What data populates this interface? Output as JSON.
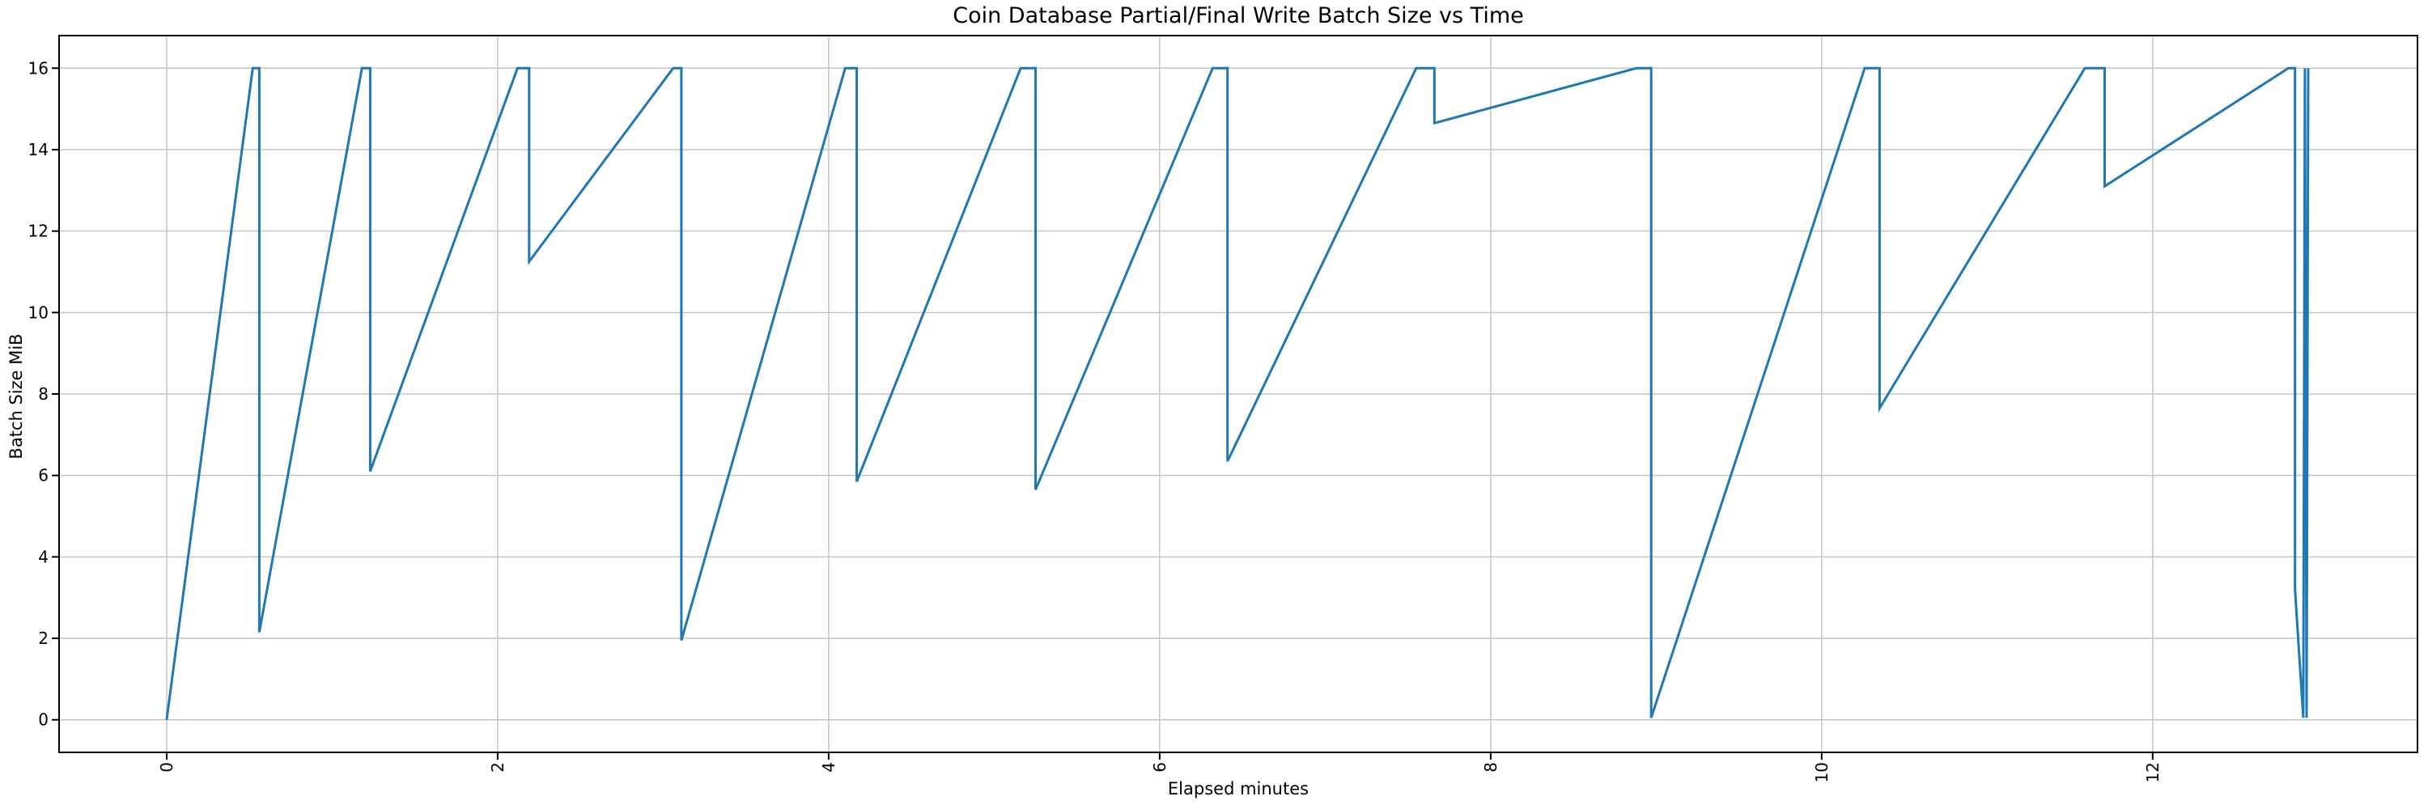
{
  "chart_data": {
    "type": "line",
    "title": "Coin Database Partial/Final Write Batch Size vs Time",
    "xlabel": "Elapsed minutes",
    "ylabel": "Batch Size MiB",
    "x_ticks": [
      0,
      2,
      4,
      6,
      8,
      10,
      12
    ],
    "y_ticks": [
      0,
      2,
      4,
      6,
      8,
      10,
      12,
      14,
      16
    ],
    "xlim": [
      -0.65,
      13.6
    ],
    "ylim": [
      -0.8,
      16.8
    ],
    "grid": true,
    "legend_position": "none",
    "line_color": "#1f77b4",
    "grid_color": "#c6c6c6",
    "spine_color": "#000000",
    "series": [
      {
        "name": "batch-size",
        "points": [
          [
            0.0,
            0.0
          ],
          [
            0.52,
            16
          ],
          [
            0.56,
            16
          ],
          [
            0.56,
            2.15
          ],
          [
            1.18,
            16
          ],
          [
            1.23,
            16
          ],
          [
            1.23,
            6.1
          ],
          [
            2.12,
            16
          ],
          [
            2.19,
            16
          ],
          [
            2.19,
            11.25
          ],
          [
            3.06,
            16
          ],
          [
            3.11,
            16
          ],
          [
            3.11,
            1.95
          ],
          [
            4.1,
            16
          ],
          [
            4.17,
            16
          ],
          [
            4.17,
            5.85
          ],
          [
            5.16,
            16
          ],
          [
            5.25,
            16
          ],
          [
            5.25,
            5.65
          ],
          [
            6.32,
            16
          ],
          [
            6.41,
            16
          ],
          [
            6.41,
            6.35
          ],
          [
            7.55,
            16
          ],
          [
            7.66,
            16
          ],
          [
            7.66,
            14.65
          ],
          [
            8.88,
            16
          ],
          [
            8.97,
            16
          ],
          [
            8.97,
            0.05
          ],
          [
            10.26,
            16
          ],
          [
            10.35,
            16
          ],
          [
            10.35,
            7.65
          ],
          [
            11.59,
            16
          ],
          [
            11.71,
            16
          ],
          [
            11.71,
            13.1
          ],
          [
            12.82,
            16
          ],
          [
            12.86,
            16
          ],
          [
            12.86,
            3.2
          ],
          [
            12.91,
            0.05
          ],
          [
            12.92,
            16
          ],
          [
            12.93,
            0.05
          ],
          [
            12.94,
            16
          ]
        ]
      }
    ]
  }
}
